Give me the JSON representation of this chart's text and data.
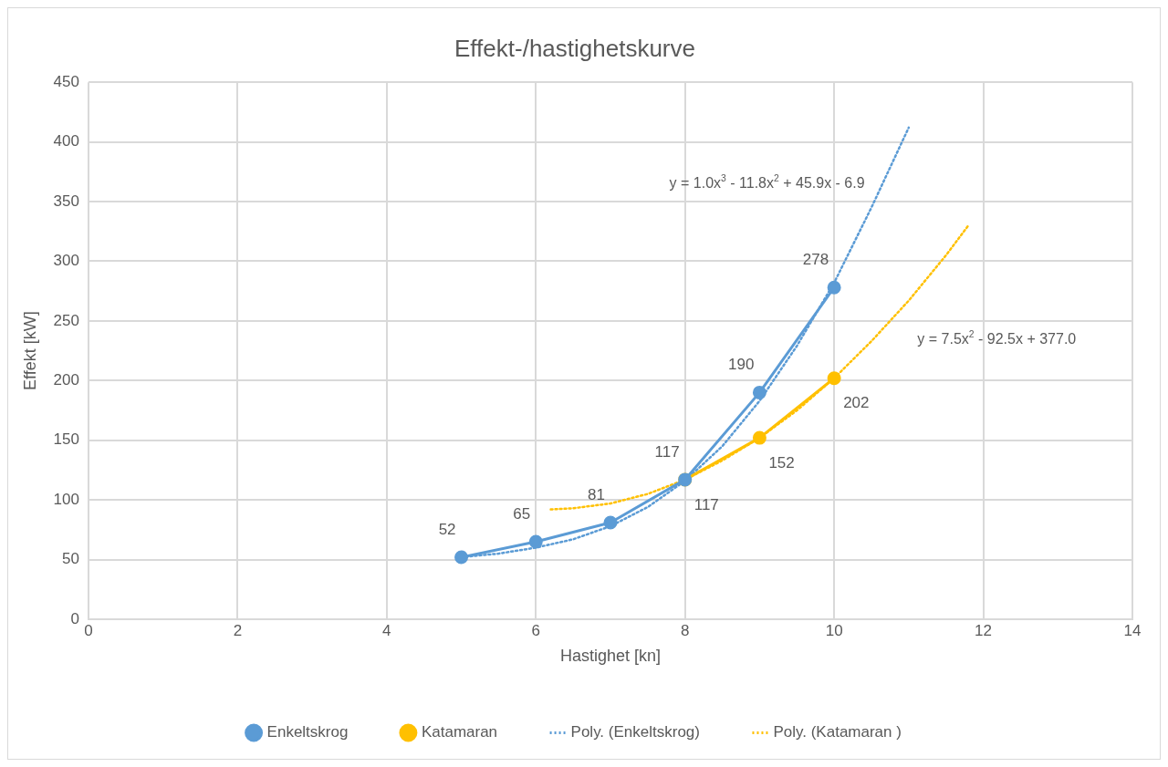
{
  "chart_data": {
    "type": "line",
    "title": "Effekt-/hastighetskurve",
    "xlabel": "Hastighet [kn]",
    "ylabel": "Effekt [kW]",
    "xlim": [
      0,
      14
    ],
    "xticks": [
      0,
      2,
      4,
      6,
      8,
      10,
      12,
      14
    ],
    "ylim": [
      0,
      450
    ],
    "yticks": [
      0,
      50,
      100,
      150,
      200,
      250,
      300,
      350,
      400,
      450
    ],
    "grid": true,
    "legend": "bottom",
    "series": [
      {
        "name": "Enkeltskrog",
        "color": "#5b9bd5",
        "marker": "circle",
        "line_style": "solid",
        "x": [
          5,
          6,
          7,
          8,
          9,
          10
        ],
        "values": [
          52,
          65,
          81,
          117,
          190,
          278
        ],
        "value_labels": [
          "52",
          "65",
          "81",
          "117",
          "190",
          "278"
        ]
      },
      {
        "name": "Katamaran",
        "color": "#ffc000",
        "marker": "circle",
        "line_style": "solid",
        "x": [
          8,
          9,
          10
        ],
        "values": [
          117,
          152,
          202
        ],
        "value_labels": [
          "117",
          "152",
          "202"
        ]
      },
      {
        "name": "Poly. (Enkeltskrog)",
        "color": "#5b9bd5",
        "marker": "none",
        "line_style": "dotted",
        "x": [
          5,
          5.5,
          6,
          6.5,
          7,
          7.5,
          8,
          8.5,
          9,
          9.5,
          10,
          10.5,
          11
        ],
        "values": [
          52,
          55,
          60,
          67,
          78,
          94,
          116,
          145,
          183,
          229,
          282,
          345,
          412
        ]
      },
      {
        "name": "Poly. (Katamaran )",
        "color": "#ffc000",
        "marker": "none",
        "line_style": "dotted",
        "x": [
          6.2,
          6.5,
          7,
          7.5,
          8,
          8.5,
          9,
          9.5,
          10,
          10.5,
          11,
          11.5,
          11.8
        ],
        "values": [
          92,
          93,
          97,
          105,
          117,
          133,
          152,
          175,
          202,
          233,
          267,
          305,
          330
        ]
      }
    ],
    "annotations": [
      "y = 1.0x$^{3}$ - 11.8x$^{2}$ + 45.9x - 6.9",
      "y = 7.5x$^{2}$ - 92.5x + 377.0"
    ]
  }
}
